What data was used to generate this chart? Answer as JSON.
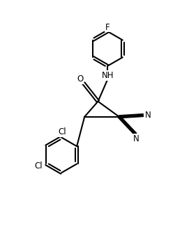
{
  "bg_color": "#ffffff",
  "line_color": "#000000",
  "line_width": 1.5,
  "font_size": 8.5,
  "figsize": [
    2.81,
    3.52
  ],
  "dpi": 100,
  "xlim": [
    0,
    10
  ],
  "ylim": [
    0,
    12.5
  ]
}
